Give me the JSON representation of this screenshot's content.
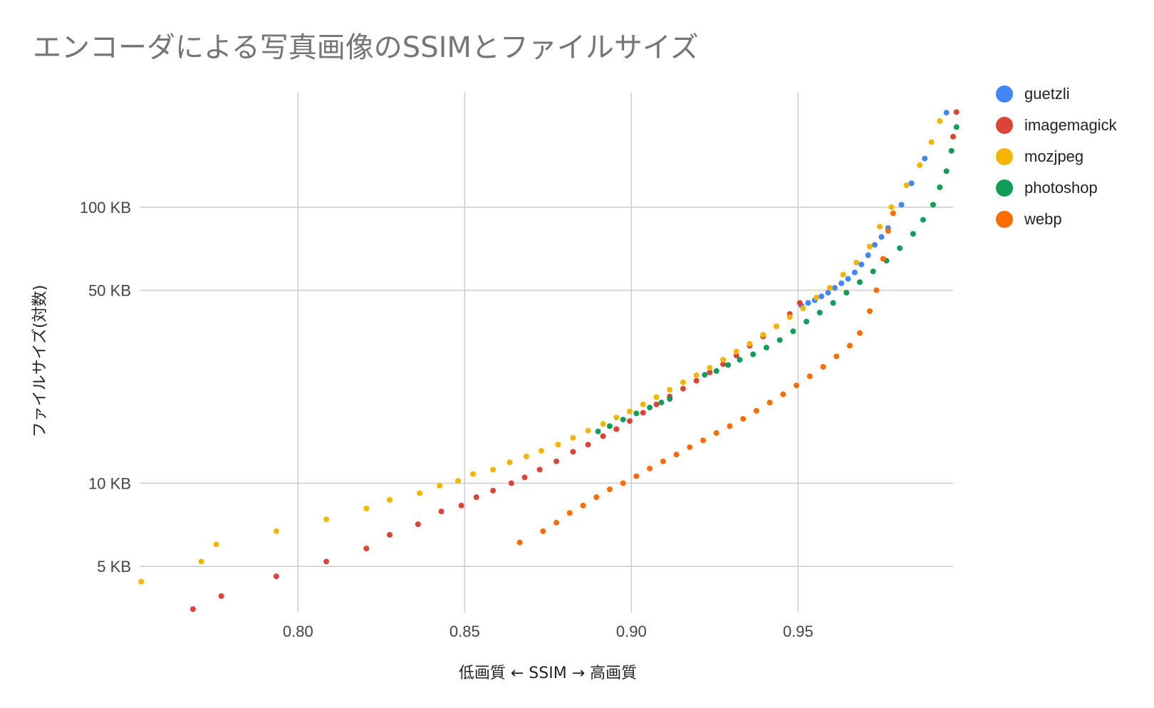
{
  "chart_data": {
    "type": "scatter",
    "title": "エンコーダによる写真画像のSSIMとファイルサイズ",
    "xlabel": "低画質 ← SSIM → 高画質",
    "ylabel": "ファイルサイズ(対数)",
    "yscale": "log",
    "xlim": [
      0.7525,
      0.9965
    ],
    "ylim": [
      3.4,
      260
    ],
    "x_ticks": [
      0.8,
      0.85,
      0.9,
      0.95
    ],
    "x_tick_labels": [
      "0.80",
      "0.85",
      "0.90",
      "0.95"
    ],
    "y_ticks": [
      5,
      10,
      50,
      100
    ],
    "y_tick_labels": [
      "5 KB",
      "10 KB",
      "50 KB",
      "100 KB"
    ],
    "legend_position": "right",
    "series": [
      {
        "name": "guetzli",
        "color": "#4285f4",
        "points": [
          [
            0.951,
            44
          ],
          [
            0.953,
            45
          ],
          [
            0.955,
            46
          ],
          [
            0.957,
            47.5
          ],
          [
            0.959,
            49
          ],
          [
            0.961,
            51
          ],
          [
            0.963,
            53
          ],
          [
            0.965,
            55
          ],
          [
            0.967,
            58
          ],
          [
            0.969,
            62
          ],
          [
            0.971,
            67
          ],
          [
            0.973,
            73
          ],
          [
            0.975,
            78
          ],
          [
            0.977,
            84
          ],
          [
            0.981,
            102
          ],
          [
            0.984,
            122
          ],
          [
            0.988,
            150
          ],
          [
            0.9945,
            220
          ]
        ]
      },
      {
        "name": "imagemagick",
        "color": "#db4437",
        "points": [
          [
            0.7685,
            3.5
          ],
          [
            0.777,
            3.9
          ],
          [
            0.7935,
            4.6
          ],
          [
            0.8085,
            5.2
          ],
          [
            0.8205,
            5.8
          ],
          [
            0.8275,
            6.5
          ],
          [
            0.836,
            7.1
          ],
          [
            0.843,
            7.9
          ],
          [
            0.849,
            8.3
          ],
          [
            0.8535,
            8.9
          ],
          [
            0.8585,
            9.4
          ],
          [
            0.864,
            10
          ],
          [
            0.868,
            10.5
          ],
          [
            0.8725,
            11.2
          ],
          [
            0.8775,
            12
          ],
          [
            0.8825,
            13
          ],
          [
            0.887,
            13.8
          ],
          [
            0.8915,
            14.8
          ],
          [
            0.8955,
            15.7
          ],
          [
            0.8995,
            16.8
          ],
          [
            0.9035,
            18
          ],
          [
            0.9075,
            19.3
          ],
          [
            0.9115,
            20.6
          ],
          [
            0.9155,
            22
          ],
          [
            0.9195,
            23.5
          ],
          [
            0.9235,
            25.2
          ],
          [
            0.9275,
            27
          ],
          [
            0.9315,
            29
          ],
          [
            0.9355,
            31.5
          ],
          [
            0.9395,
            34
          ],
          [
            0.9435,
            37
          ],
          [
            0.9475,
            41
          ],
          [
            0.9505,
            45
          ],
          [
            0.9975,
            221
          ],
          [
            0.9965,
            180
          ]
        ]
      },
      {
        "name": "mozjpeg",
        "color": "#f4b400",
        "points": [
          [
            0.753,
            4.4
          ],
          [
            0.771,
            5.2
          ],
          [
            0.7755,
            6
          ],
          [
            0.7935,
            6.7
          ],
          [
            0.8085,
            7.4
          ],
          [
            0.8205,
            8.1
          ],
          [
            0.8275,
            8.7
          ],
          [
            0.8365,
            9.2
          ],
          [
            0.8425,
            9.8
          ],
          [
            0.848,
            10.2
          ],
          [
            0.8525,
            10.8
          ],
          [
            0.8585,
            11.2
          ],
          [
            0.8635,
            11.9
          ],
          [
            0.8685,
            12.5
          ],
          [
            0.873,
            13.1
          ],
          [
            0.878,
            13.8
          ],
          [
            0.8825,
            14.6
          ],
          [
            0.887,
            15.5
          ],
          [
            0.8915,
            16.4
          ],
          [
            0.8955,
            17.3
          ],
          [
            0.8995,
            18.2
          ],
          [
            0.9035,
            19.3
          ],
          [
            0.9075,
            20.5
          ],
          [
            0.9115,
            21.8
          ],
          [
            0.9155,
            23.2
          ],
          [
            0.9195,
            24.6
          ],
          [
            0.9235,
            26.2
          ],
          [
            0.9275,
            28
          ],
          [
            0.9315,
            30
          ],
          [
            0.9355,
            32
          ],
          [
            0.9395,
            34.5
          ],
          [
            0.9435,
            37
          ],
          [
            0.9475,
            40
          ],
          [
            0.9515,
            43
          ],
          [
            0.9555,
            47
          ],
          [
            0.9595,
            51
          ],
          [
            0.9635,
            57
          ],
          [
            0.9675,
            63
          ],
          [
            0.9715,
            72
          ],
          [
            0.9745,
            85
          ],
          [
            0.978,
            100
          ],
          [
            0.9825,
            120
          ],
          [
            0.9865,
            142
          ],
          [
            0.99,
            172
          ],
          [
            0.9925,
            205
          ]
        ]
      },
      {
        "name": "photoshop",
        "color": "#0f9d58",
        "points": [
          [
            0.89,
            15.4
          ],
          [
            0.8935,
            16.1
          ],
          [
            0.8975,
            17
          ],
          [
            0.9015,
            17.9
          ],
          [
            0.9055,
            18.8
          ],
          [
            0.909,
            19.6
          ],
          [
            0.9115,
            20.2
          ],
          [
            0.922,
            24.7
          ],
          [
            0.9255,
            25.5
          ],
          [
            0.929,
            26.8
          ],
          [
            0.9325,
            28
          ],
          [
            0.9365,
            29.3
          ],
          [
            0.9405,
            31
          ],
          [
            0.9445,
            33
          ],
          [
            0.9485,
            35.5
          ],
          [
            0.9525,
            38.5
          ],
          [
            0.9565,
            41.5
          ],
          [
            0.9605,
            45
          ],
          [
            0.9645,
            49
          ],
          [
            0.9685,
            53.5
          ],
          [
            0.9725,
            58.5
          ],
          [
            0.9765,
            64
          ],
          [
            0.9805,
            71
          ],
          [
            0.9845,
            80
          ],
          [
            0.9875,
            90
          ],
          [
            0.9905,
            102
          ],
          [
            0.9925,
            118
          ],
          [
            0.9945,
            135
          ],
          [
            0.996,
            160
          ],
          [
            0.9975,
            195
          ]
        ]
      },
      {
        "name": "webp",
        "color": "#ff6d00",
        "points": [
          [
            0.8665,
            6.1
          ],
          [
            0.8735,
            6.7
          ],
          [
            0.8775,
            7.2
          ],
          [
            0.8815,
            7.8
          ],
          [
            0.8855,
            8.3
          ],
          [
            0.8895,
            8.9
          ],
          [
            0.8935,
            9.5
          ],
          [
            0.8975,
            10
          ],
          [
            0.9015,
            10.6
          ],
          [
            0.9055,
            11.3
          ],
          [
            0.9095,
            12
          ],
          [
            0.9135,
            12.7
          ],
          [
            0.9175,
            13.5
          ],
          [
            0.9215,
            14.3
          ],
          [
            0.9255,
            15.2
          ],
          [
            0.9295,
            16.1
          ],
          [
            0.9335,
            17.1
          ],
          [
            0.9375,
            18.3
          ],
          [
            0.9415,
            19.6
          ],
          [
            0.9455,
            21
          ],
          [
            0.9495,
            22.6
          ],
          [
            0.9535,
            24.4
          ],
          [
            0.9575,
            26.4
          ],
          [
            0.9615,
            28.8
          ],
          [
            0.9655,
            31.5
          ],
          [
            0.9685,
            35
          ],
          [
            0.9715,
            42
          ],
          [
            0.9735,
            50
          ],
          [
            0.9755,
            65
          ],
          [
            0.977,
            82
          ],
          [
            0.9785,
            95
          ]
        ]
      }
    ]
  }
}
